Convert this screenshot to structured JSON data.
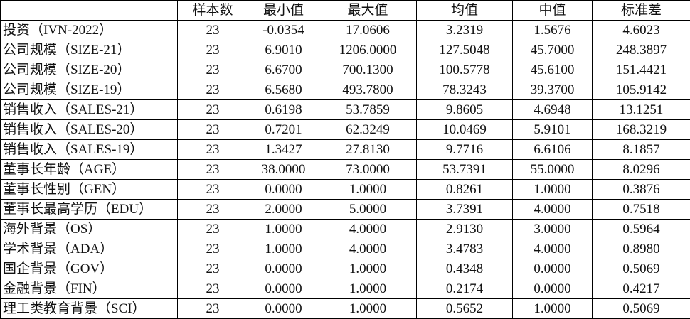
{
  "table": {
    "headers": [
      "",
      "样本数",
      "最小值",
      "最大值",
      "均值",
      "中值",
      "标准差"
    ],
    "rows": [
      [
        "投资（IVN-2022）",
        "23",
        "-0.0354",
        "17.0606",
        "3.2319",
        "1.5676",
        "4.6023"
      ],
      [
        "公司规模（SIZE-21）",
        "23",
        "6.9010",
        "1206.0000",
        "127.5048",
        "45.7000",
        "248.3897"
      ],
      [
        "公司规模（SIZE-20）",
        "23",
        "6.6700",
        "700.1300",
        "100.5778",
        "45.6100",
        "151.4421"
      ],
      [
        "公司规模（SIZE-19）",
        "23",
        "6.5680",
        "493.7800",
        "78.3243",
        "39.3700",
        "105.9142"
      ],
      [
        "销售收入（SALES-21）",
        "23",
        "0.6198",
        "53.7859",
        "9.8605",
        "4.6948",
        "13.1251"
      ],
      [
        "销售收入（SALES-20）",
        "23",
        "0.7201",
        "62.3249",
        "10.0469",
        "5.9101",
        "168.3219"
      ],
      [
        "销售收入（SALES-19）",
        "23",
        "1.3427",
        "27.8130",
        "9.7716",
        "6.6106",
        "8.1857"
      ],
      [
        "董事长年龄（AGE）",
        "23",
        "38.0000",
        "73.0000",
        "53.7391",
        "55.0000",
        "8.0296"
      ],
      [
        "董事长性别（GEN）",
        "23",
        "0.0000",
        "1.0000",
        "0.8261",
        "1.0000",
        "0.3876"
      ],
      [
        "董事长最高学历（EDU）",
        "23",
        "2.0000",
        "5.0000",
        "3.7391",
        "4.0000",
        "0.7518"
      ],
      [
        "海外背景（OS）",
        "23",
        "1.0000",
        "4.0000",
        "2.9130",
        "3.0000",
        "0.5964"
      ],
      [
        "学术背景（ADA）",
        "23",
        "1.0000",
        "4.0000",
        "3.4783",
        "4.0000",
        "0.8980"
      ],
      [
        "国企背景（GOV）",
        "23",
        "0.0000",
        "1.0000",
        "0.4348",
        "0.0000",
        "0.5069"
      ],
      [
        "金融背景（FIN）",
        "23",
        "0.0000",
        "1.0000",
        "0.2174",
        "0.0000",
        "0.4217"
      ],
      [
        "理工类教育背景（SCI）",
        "23",
        "0.0000",
        "1.0000",
        "0.5652",
        "1.0000",
        "0.5069"
      ]
    ]
  }
}
